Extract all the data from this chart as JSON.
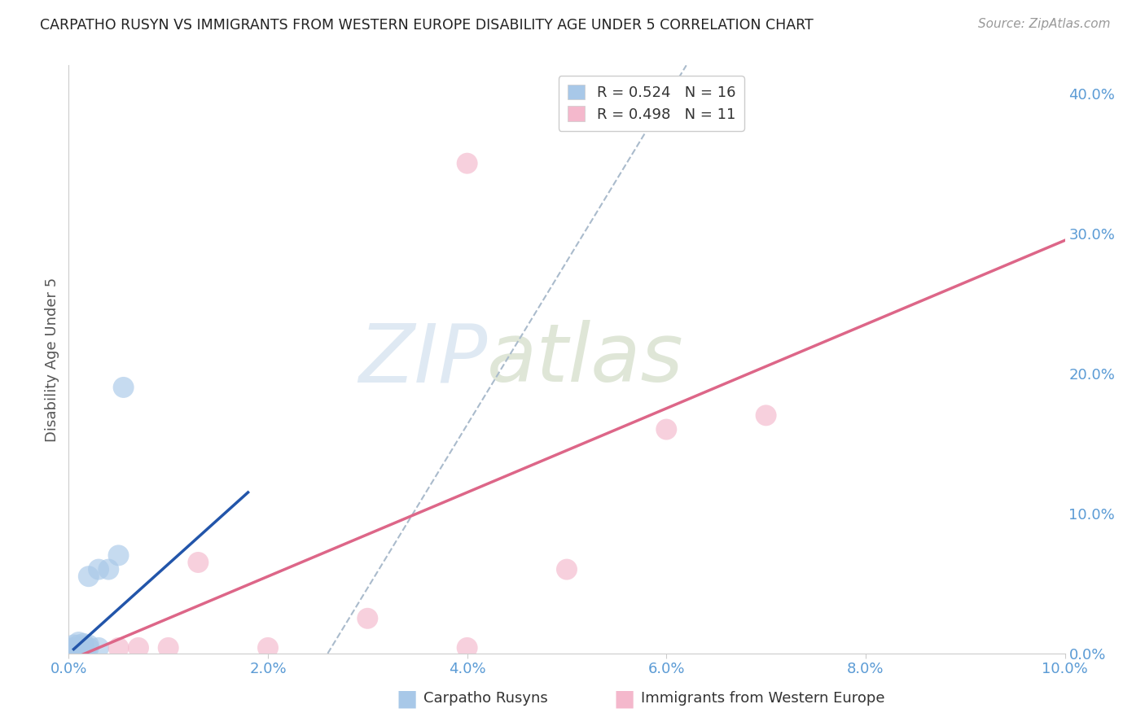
{
  "title": "CARPATHO RUSYN VS IMMIGRANTS FROM WESTERN EUROPE DISABILITY AGE UNDER 5 CORRELATION CHART",
  "source": "Source: ZipAtlas.com",
  "ylabel": "Disability Age Under 5",
  "bg_color": "#ffffff",
  "grid_color": "#dddddd",
  "watermark_zip": "ZIP",
  "watermark_atlas": "atlas",
  "blue_color": "#a8c8e8",
  "pink_color": "#f4b8cc",
  "blue_line_color": "#2255aa",
  "pink_line_color": "#dd6688",
  "dash_line_color": "#aabbcc",
  "tick_color": "#5b9bd5",
  "R_blue": 0.524,
  "N_blue": 16,
  "R_pink": 0.498,
  "N_pink": 11,
  "xlim": [
    0.0,
    0.1
  ],
  "ylim": [
    0.0,
    0.42
  ],
  "xticks": [
    0.0,
    0.02,
    0.04,
    0.06,
    0.08,
    0.1
  ],
  "yticks_right": [
    0.0,
    0.1,
    0.2,
    0.3,
    0.4
  ],
  "blue_scatter_x": [
    0.0005,
    0.0005,
    0.0008,
    0.001,
    0.001,
    0.001,
    0.0015,
    0.0015,
    0.002,
    0.002,
    0.002,
    0.003,
    0.003,
    0.004,
    0.005,
    0.0055
  ],
  "blue_scatter_y": [
    0.004,
    0.006,
    0.004,
    0.004,
    0.006,
    0.008,
    0.004,
    0.007,
    0.004,
    0.006,
    0.055,
    0.004,
    0.06,
    0.06,
    0.07,
    0.19
  ],
  "pink_scatter_x": [
    0.005,
    0.007,
    0.01,
    0.013,
    0.02,
    0.03,
    0.04,
    0.05,
    0.06,
    0.07,
    0.04
  ],
  "pink_scatter_y": [
    0.004,
    0.004,
    0.004,
    0.065,
    0.004,
    0.025,
    0.004,
    0.06,
    0.16,
    0.17,
    0.35
  ],
  "blue_line_x": [
    0.0005,
    0.018
  ],
  "blue_line_y": [
    0.003,
    0.115
  ],
  "pink_line_x": [
    0.0,
    0.1
  ],
  "pink_line_y": [
    -0.005,
    0.295
  ],
  "dash_line_x": [
    0.026,
    0.062
  ],
  "dash_line_y": [
    0.0,
    0.42
  ]
}
